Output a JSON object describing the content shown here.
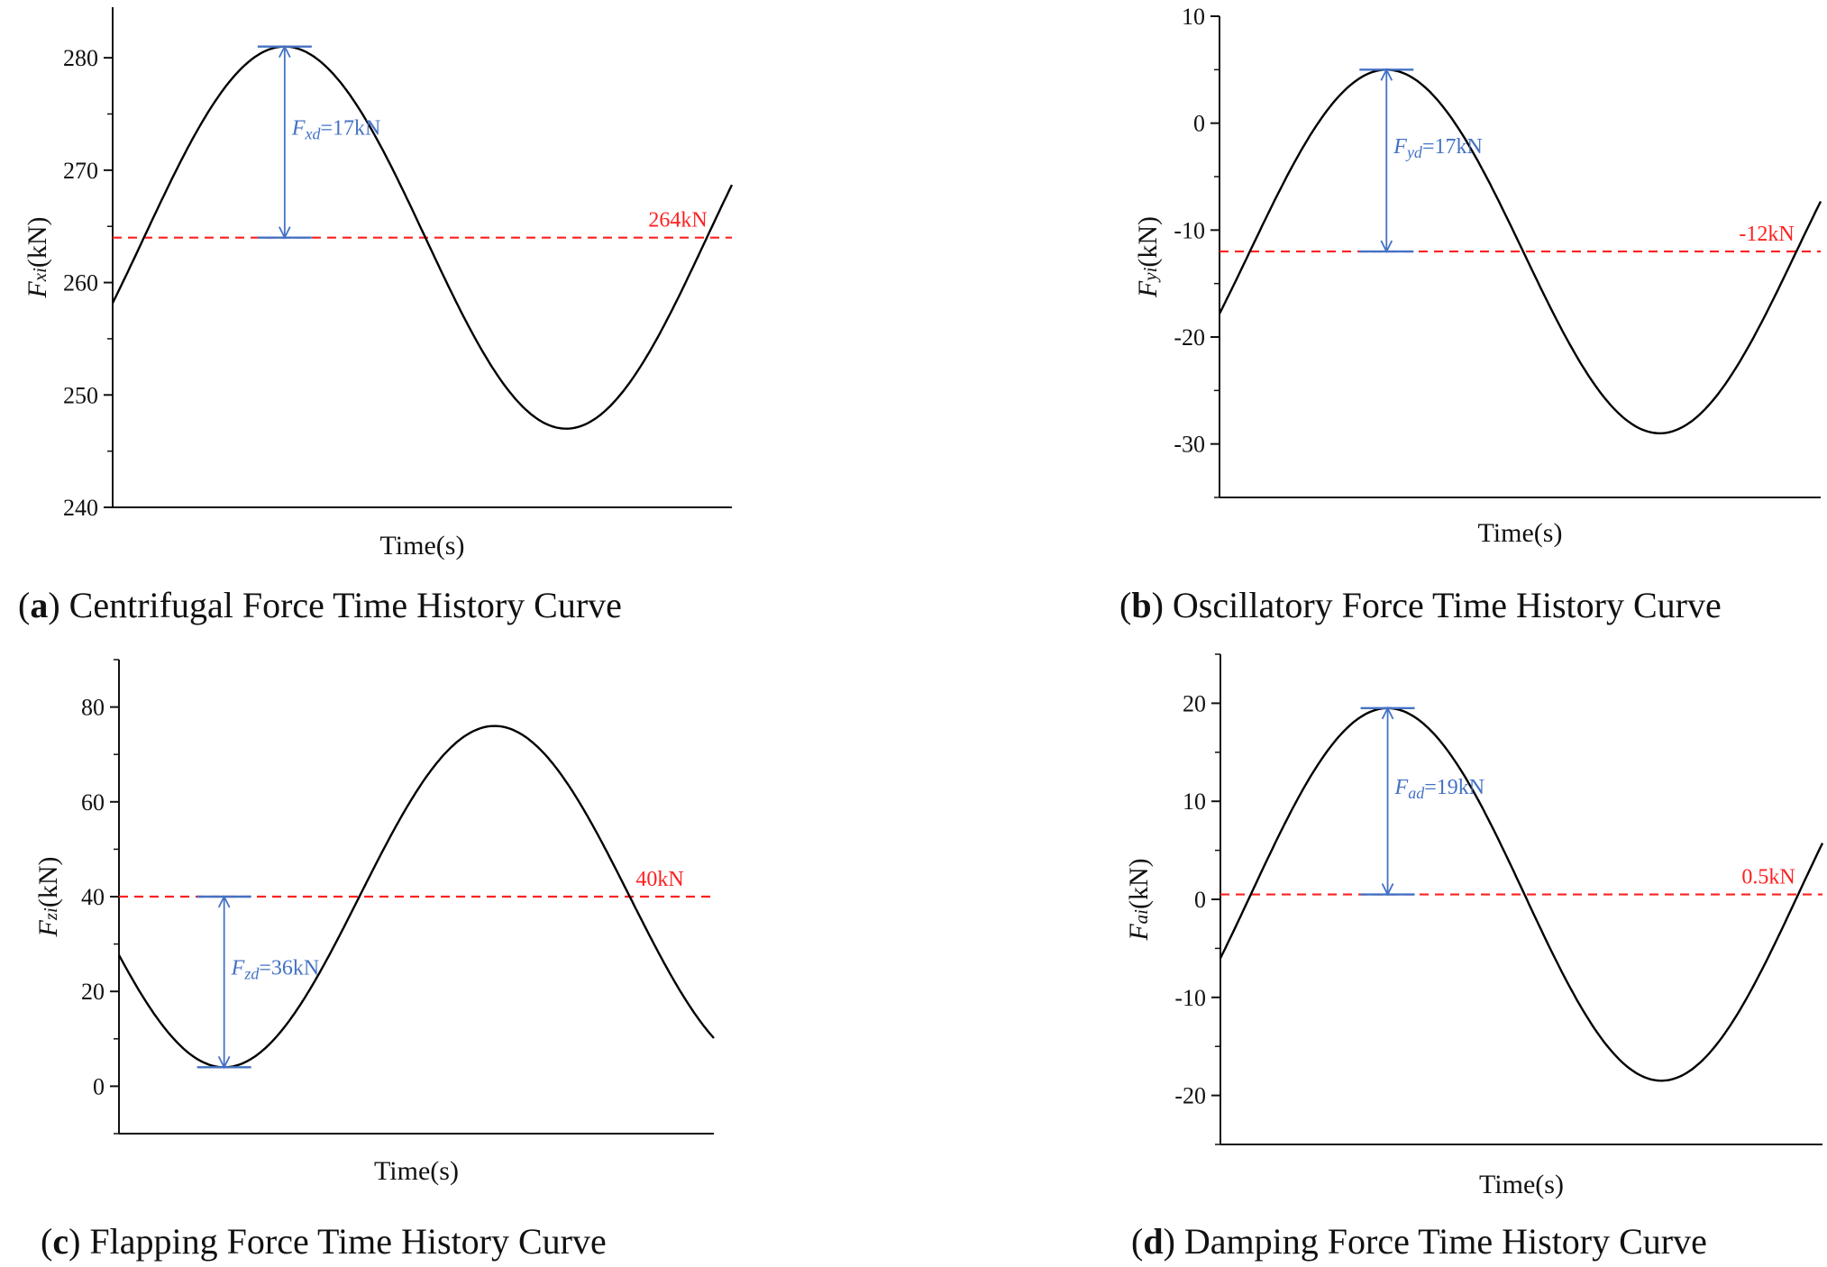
{
  "colors": {
    "curve": "#000000",
    "reference": "#ff2020",
    "amplitude": "#4472c4",
    "axis": "#111111"
  },
  "chart_data": [
    {
      "type": "line",
      "id": "a",
      "caption_letter": "a",
      "caption_text": "Centrifugal Force Time History Curve",
      "xlabel": "Time(s)",
      "ylabel_symbol": "F",
      "ylabel_sub": "xi",
      "ylabel_unit": "(kN)",
      "ylim": [
        240,
        284.5
      ],
      "yticks": [
        240,
        250,
        260,
        270,
        280
      ],
      "curve": {
        "mean": 264,
        "amplitude": 17,
        "phase_deg": -20,
        "cycles": 1.1,
        "t_range": [
          0,
          1
        ]
      },
      "reference": {
        "value": 264,
        "label": "264kN"
      },
      "amplitude_marker": {
        "from": 264,
        "to": 281,
        "symbol": "F",
        "sub": "xd",
        "text": "=17kN"
      }
    },
    {
      "type": "line",
      "id": "b",
      "caption_letter": "b",
      "caption_text": "Oscillatory Force Time History Curve",
      "xlabel": "Time(s)",
      "ylabel_symbol": "F",
      "ylabel_sub": "yi",
      "ylabel_unit": "(kN)",
      "ylim": [
        -35,
        10
      ],
      "yticks": [
        -30,
        -20,
        -10,
        0,
        10
      ],
      "curve": {
        "mean": -12,
        "amplitude": 17,
        "phase_deg": -20,
        "cycles": 1.1,
        "t_range": [
          0,
          1
        ]
      },
      "reference": {
        "value": -12,
        "label": "-12kN"
      },
      "amplitude_marker": {
        "from": -12,
        "to": 5,
        "symbol": "F",
        "sub": "yd",
        "text": "=17kN"
      }
    },
    {
      "type": "line",
      "id": "c",
      "caption_letter": "c",
      "caption_text": "Flapping Force Time History Curve",
      "xlabel": "Time(s)",
      "ylabel_symbol": "F",
      "ylabel_sub": "zi",
      "ylabel_unit": "(kN)",
      "ylim": [
        -10,
        90
      ],
      "yticks": [
        0,
        20,
        40,
        60,
        80
      ],
      "curve": {
        "mean": 40,
        "amplitude": -36,
        "phase_deg": 20,
        "cycles": 1.1,
        "t_range": [
          0,
          1
        ]
      },
      "reference": {
        "value": 40,
        "label": "40kN"
      },
      "amplitude_marker": {
        "from": 40,
        "to": 4,
        "symbol": "F",
        "sub": "zd",
        "text": "=36kN"
      }
    },
    {
      "type": "line",
      "id": "d",
      "caption_letter": "d",
      "caption_text": "Damping Force Time History Curve",
      "xlabel": "Time(s)",
      "ylabel_symbol": "F",
      "ylabel_sub": "ai",
      "ylabel_unit": "(kN)",
      "ylim": [
        -25,
        25
      ],
      "yticks": [
        -20,
        -10,
        0,
        10,
        20
      ],
      "curve": {
        "mean": 0.5,
        "amplitude": 19,
        "phase_deg": -20,
        "cycles": 1.1,
        "t_range": [
          0,
          1
        ]
      },
      "reference": {
        "value": 0.5,
        "label": "0.5kN"
      },
      "amplitude_marker": {
        "from": 0.5,
        "to": 19.5,
        "symbol": "F",
        "sub": "ad",
        "text": "=19kN"
      }
    }
  ]
}
